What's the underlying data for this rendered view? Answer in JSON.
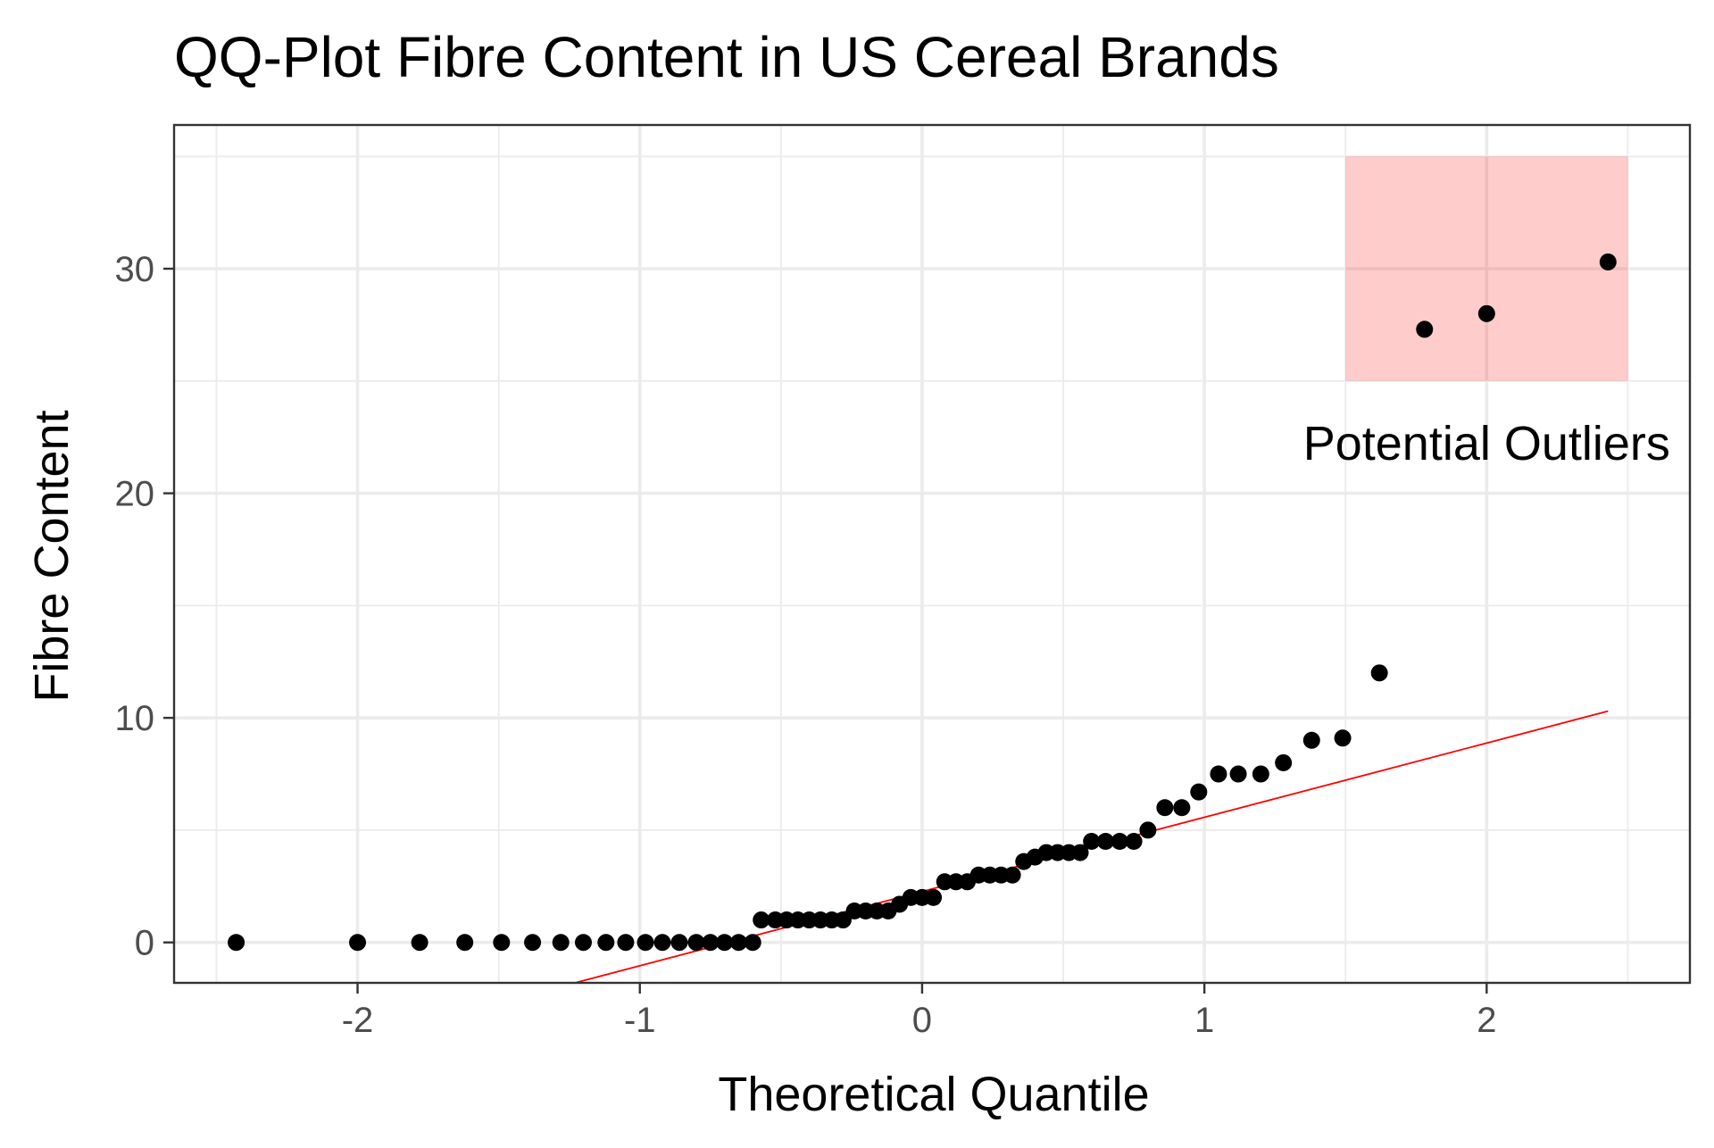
{
  "chart_data": {
    "type": "scatter",
    "title": "QQ-Plot Fibre Content in US Cereal Brands",
    "xlabel": "Theoretical Quantile",
    "ylabel": "Fibre Content",
    "xlim": [
      -2.65,
      2.72
    ],
    "ylim": [
      -1.8,
      36.4
    ],
    "x_ticks": [
      -2,
      -1,
      0,
      1,
      2
    ],
    "x_tick_labels": [
      "-2",
      "-1",
      "0",
      "1",
      "2"
    ],
    "y_ticks": [
      0,
      10,
      20,
      30
    ],
    "y_tick_labels": [
      "0",
      "10",
      "20",
      "30"
    ],
    "grid": true,
    "theme": "bw",
    "point_color": "#000000",
    "points": {
      "x": [
        -2.43,
        -2.0,
        -1.78,
        -1.62,
        -1.49,
        -1.38,
        -1.28,
        -1.2,
        -1.12,
        -1.05,
        -0.98,
        -0.92,
        -0.86,
        -0.8,
        -0.75,
        -0.7,
        -0.65,
        -0.6,
        -0.57,
        -0.52,
        -0.48,
        -0.44,
        -0.4,
        -0.36,
        -0.32,
        -0.28,
        -0.24,
        -0.2,
        -0.16,
        -0.12,
        -0.08,
        -0.04,
        0.0,
        0.04,
        0.08,
        0.12,
        0.16,
        0.2,
        0.24,
        0.28,
        0.32,
        0.36,
        0.4,
        0.44,
        0.48,
        0.52,
        0.56,
        0.6,
        0.65,
        0.7,
        0.75,
        0.8,
        0.86,
        0.92,
        0.98,
        1.05,
        1.12,
        1.2,
        1.28,
        1.38,
        1.49,
        1.62,
        1.78,
        2.0,
        2.43
      ],
      "y": [
        0,
        0,
        0,
        0,
        0,
        0,
        0,
        0,
        0,
        0,
        0,
        0,
        0,
        0,
        0,
        0,
        0,
        0,
        1,
        1,
        1,
        1,
        1,
        1,
        1,
        1,
        1.4,
        1.4,
        1.4,
        1.4,
        1.7,
        2,
        2,
        2,
        2.7,
        2.7,
        2.7,
        3,
        3,
        3,
        3,
        3.6,
        3.8,
        4,
        4,
        4,
        4,
        4.5,
        4.5,
        4.5,
        4.5,
        5,
        6,
        6,
        6.7,
        7.5,
        7.5,
        7.5,
        8,
        9,
        9.1,
        12,
        27.3,
        28,
        30.3
      ]
    },
    "reference_line": {
      "color": "#ff0000",
      "x": [
        -1.23,
        2.43
      ],
      "y": [
        -1.8,
        10.3
      ]
    },
    "highlight_rect": {
      "x": [
        1.5,
        2.5
      ],
      "y": [
        25,
        35
      ],
      "fill": "#ff0000",
      "opacity": 0.2
    },
    "annotations": [
      {
        "text": "Potential Outliers",
        "x": 2.0,
        "y": 21.5
      }
    ]
  }
}
